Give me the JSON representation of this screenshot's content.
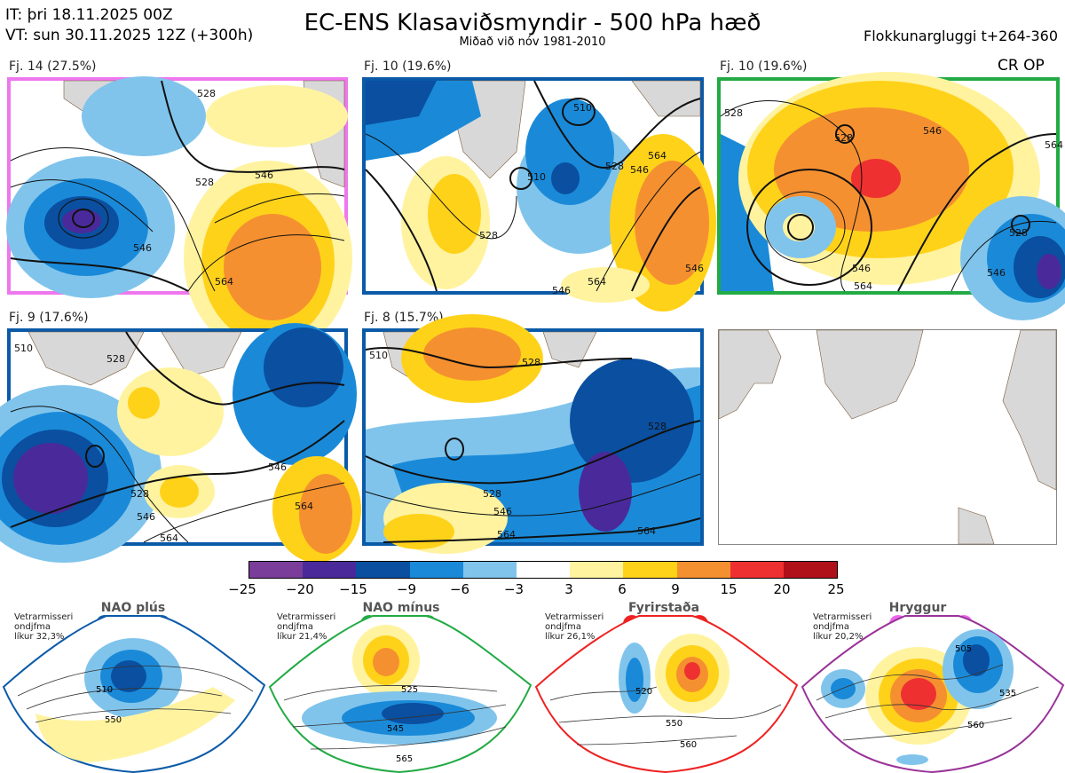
{
  "header": {
    "it_line": "IT: þri 18.11.2025 00Z",
    "vt_line": "VT: sun 30.11.2025 12Z  (+300h)",
    "title": "EC-ENS Klasaviðsmyndir - 500 hPa hæð",
    "subtitle": "Miðað við nóv 1981-2010",
    "window": "Flokkunargluggi t+264-360"
  },
  "panels": [
    {
      "label": "Fj. 14 (27.5%)",
      "border": "#ee77ee",
      "contours": [
        "528",
        "528",
        "546",
        "546",
        "564"
      ]
    },
    {
      "label": "Fj. 10 (19.6%)",
      "border": "#0a5aa8",
      "contours": [
        "510",
        "510",
        "528",
        "546",
        "564",
        "564",
        "528",
        "546",
        "546"
      ]
    },
    {
      "label": "Fj. 10 (19.6%)",
      "border": "#22aa44",
      "tag": "CR OP",
      "contours": [
        "528",
        "528",
        "528",
        "546",
        "546",
        "546",
        "564",
        "564"
      ]
    },
    {
      "label": "Fj. 9 (17.6%)",
      "border": "#0a5aa8",
      "contours": [
        "510",
        "528",
        "528",
        "546",
        "546",
        "564",
        "564"
      ]
    },
    {
      "label": "Fj. 8 (15.7%)",
      "border": "#0a5aa8",
      "contours": [
        "510",
        "528",
        "528",
        "528",
        "546",
        "564",
        "564"
      ]
    }
  ],
  "colorbar": {
    "colors": [
      "#7a3d99",
      "#4a2a9a",
      "#0a4fa0",
      "#1a8ad8",
      "#80c4ec",
      "#ffffff",
      "#fff3a0",
      "#ffd21a",
      "#f59030",
      "#ee3030",
      "#b0101a"
    ],
    "labels": [
      "−25",
      "−20",
      "−15",
      "−9",
      "−6",
      "−3",
      "3",
      "6",
      "9",
      "15",
      "20",
      "25"
    ]
  },
  "regimes": [
    {
      "name": "NAO plús",
      "note": [
        "Vetrarmisseri",
        "ondjfma",
        "líkur 32,3%"
      ],
      "color": "#0a5aa8",
      "contours": [
        "510",
        "550"
      ]
    },
    {
      "name": "NAO mínus",
      "note": [
        "Vetrarmisseri",
        "ondjfma",
        "líkur 21,4%"
      ],
      "color": "#22aa44",
      "contours": [
        "525",
        "545",
        "565"
      ]
    },
    {
      "name": "Fyrirstaða",
      "note": [
        "Vetrarmisseri",
        "ondjfma",
        "líkur 26,1%"
      ],
      "color": "#ee2222",
      "contours": [
        "520",
        "550",
        "560"
      ]
    },
    {
      "name": "Hryggur",
      "note": [
        "Vetrarmisseri",
        "ondjfma",
        "líkur 20,2%"
      ],
      "color": "#ee66ee",
      "contours": [
        "505",
        "535",
        "560"
      ]
    }
  ]
}
